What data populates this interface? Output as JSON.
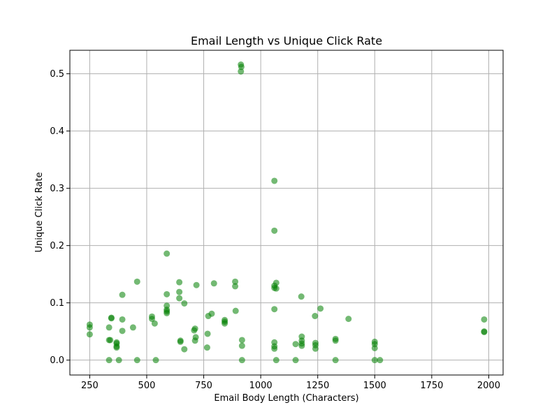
{
  "chart_data": {
    "type": "scatter",
    "title": "Email Length vs Unique Click Rate",
    "xlabel": "Email Body Length (Characters)",
    "ylabel": "Unique Click Rate",
    "xlim": [
      163,
      2063
    ],
    "ylim": [
      -0.026,
      0.541
    ],
    "xticks": [
      250,
      500,
      750,
      1000,
      1250,
      1500,
      1750,
      2000
    ],
    "yticks": [
      0.0,
      0.1,
      0.2,
      0.3,
      0.4,
      0.5
    ],
    "xtick_labels": [
      "250",
      "500",
      "750",
      "1000",
      "1250",
      "1500",
      "1750",
      "2000"
    ],
    "ytick_labels": [
      "0.0",
      "0.1",
      "0.2",
      "0.3",
      "0.4",
      "0.5"
    ],
    "grid": true,
    "marker_color": "#008000",
    "points": [
      [
        250,
        0.062
      ],
      [
        250,
        0.057
      ],
      [
        250,
        0.045
      ],
      [
        335,
        0.0
      ],
      [
        335,
        0.035
      ],
      [
        340,
        0.035
      ],
      [
        335,
        0.057
      ],
      [
        345,
        0.074
      ],
      [
        345,
        0.073
      ],
      [
        368,
        0.031
      ],
      [
        368,
        0.029
      ],
      [
        368,
        0.022
      ],
      [
        368,
        0.024
      ],
      [
        378,
        0.0
      ],
      [
        393,
        0.114
      ],
      [
        393,
        0.071
      ],
      [
        393,
        0.051
      ],
      [
        440,
        0.057
      ],
      [
        458,
        0.137
      ],
      [
        458,
        0.0
      ],
      [
        523,
        0.076
      ],
      [
        523,
        0.072
      ],
      [
        535,
        0.064
      ],
      [
        540,
        0.0
      ],
      [
        588,
        0.186
      ],
      [
        588,
        0.115
      ],
      [
        588,
        0.095
      ],
      [
        588,
        0.088
      ],
      [
        588,
        0.085
      ],
      [
        588,
        0.082
      ],
      [
        643,
        0.136
      ],
      [
        643,
        0.119
      ],
      [
        643,
        0.108
      ],
      [
        648,
        0.034
      ],
      [
        648,
        0.032
      ],
      [
        665,
        0.019
      ],
      [
        665,
        0.099
      ],
      [
        708,
        0.052
      ],
      [
        712,
        0.055
      ],
      [
        712,
        0.034
      ],
      [
        715,
        0.04
      ],
      [
        718,
        0.131
      ],
      [
        765,
        0.022
      ],
      [
        767,
        0.046
      ],
      [
        770,
        0.077
      ],
      [
        785,
        0.081
      ],
      [
        795,
        0.134
      ],
      [
        842,
        0.067
      ],
      [
        842,
        0.064
      ],
      [
        842,
        0.07
      ],
      [
        888,
        0.137
      ],
      [
        888,
        0.129
      ],
      [
        890,
        0.086
      ],
      [
        913,
        0.516
      ],
      [
        913,
        0.504
      ],
      [
        915,
        0.512
      ],
      [
        918,
        0.035
      ],
      [
        918,
        0.025
      ],
      [
        918,
        0.0
      ],
      [
        1060,
        0.226
      ],
      [
        1060,
        0.313
      ],
      [
        1060,
        0.13
      ],
      [
        1060,
        0.126
      ],
      [
        1060,
        0.089
      ],
      [
        1060,
        0.031
      ],
      [
        1060,
        0.024
      ],
      [
        1060,
        0.02
      ],
      [
        1068,
        0.135
      ],
      [
        1068,
        0.125
      ],
      [
        1068,
        0.0
      ],
      [
        1153,
        0.028
      ],
      [
        1153,
        0.0
      ],
      [
        1178,
        0.111
      ],
      [
        1180,
        0.041
      ],
      [
        1180,
        0.034
      ],
      [
        1180,
        0.029
      ],
      [
        1180,
        0.025
      ],
      [
        1238,
        0.077
      ],
      [
        1240,
        0.03
      ],
      [
        1240,
        0.026
      ],
      [
        1240,
        0.02
      ],
      [
        1262,
        0.09
      ],
      [
        1328,
        0.037
      ],
      [
        1328,
        0.034
      ],
      [
        1328,
        0.0
      ],
      [
        1385,
        0.072
      ],
      [
        1500,
        0.032
      ],
      [
        1500,
        0.028
      ],
      [
        1500,
        0.021
      ],
      [
        1500,
        0.0
      ],
      [
        1523,
        0.0
      ],
      [
        1980,
        0.071
      ],
      [
        1980,
        0.05
      ],
      [
        1980,
        0.049
      ]
    ]
  }
}
